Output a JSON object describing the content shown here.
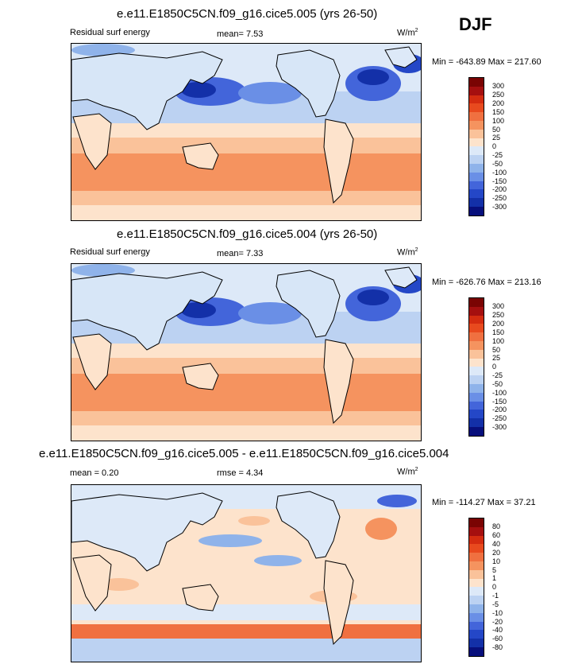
{
  "season": "DJF",
  "panels": [
    {
      "title": "e.e11.E1850C5CN.f09_g16.cice5.005 (yrs 26-50)",
      "left_label": "Residual surf energy",
      "mid_label": "mean=   7.53",
      "units": "W/m",
      "units_exp": "2",
      "minmax": "Min = -643.89 Max = 217.60",
      "levels": [
        "300",
        "250",
        "200",
        "150",
        "100",
        "50",
        "25",
        "0",
        "-25",
        "-50",
        "-100",
        "-150",
        "-200",
        "-250",
        "-300"
      ]
    },
    {
      "title": "e.e11.E1850C5CN.f09_g16.cice5.004 (yrs 26-50)",
      "left_label": "Residual surf energy",
      "mid_label": "mean=   7.33",
      "units": "W/m",
      "units_exp": "2",
      "minmax": "Min = -626.76 Max = 213.16",
      "levels": [
        "300",
        "250",
        "200",
        "150",
        "100",
        "50",
        "25",
        "0",
        "-25",
        "-50",
        "-100",
        "-150",
        "-200",
        "-250",
        "-300"
      ]
    },
    {
      "title": "e.e11.E1850C5CN.f09_g16.cice5.005 - e.e11.E1850C5CN.f09_g16.cice5.004",
      "left_label": "mean =   0.20",
      "mid_label": "rmse =   4.34",
      "units": "W/m",
      "units_exp": "2",
      "minmax": "Min = -114.27 Max =  37.21",
      "levels": [
        "80",
        "60",
        "40",
        "20",
        "10",
        "5",
        "1",
        "0",
        "-1",
        "-5",
        "-10",
        "-20",
        "-40",
        "-60",
        "-80"
      ]
    }
  ],
  "colors": {
    "scale": [
      "#7a0403",
      "#a50f0f",
      "#d42c10",
      "#e84a1e",
      "#f07040",
      "#f5935f",
      "#fac29a",
      "#fde3cc",
      "#dde9f8",
      "#bcd2f2",
      "#8fb3ea",
      "#6a8fe6",
      "#4365da",
      "#2447c7",
      "#1330a8",
      "#070f7c"
    ],
    "land": "#d7e6f7"
  }
}
